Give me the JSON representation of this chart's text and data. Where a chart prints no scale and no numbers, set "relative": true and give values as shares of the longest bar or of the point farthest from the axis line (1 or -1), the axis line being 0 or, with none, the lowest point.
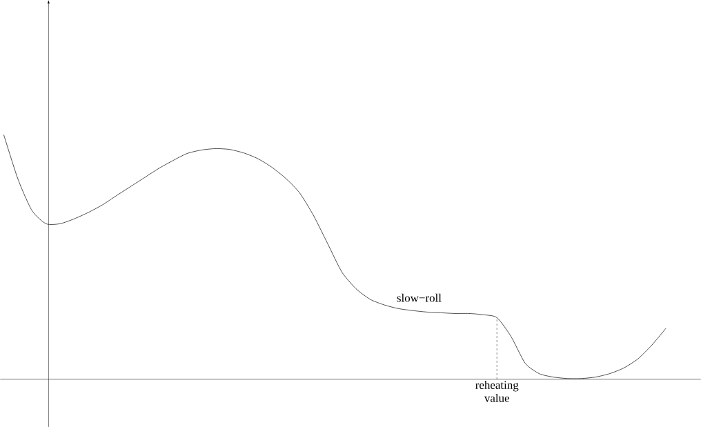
{
  "chart_data": {
    "type": "line",
    "relative": true,
    "color": "#000000",
    "categories": [
      null,
      null,
      null,
      null,
      null,
      null,
      null,
      null,
      null,
      null,
      null,
      null,
      null,
      null,
      null,
      null,
      null,
      null,
      null,
      null,
      null,
      null,
      null,
      null,
      null,
      null,
      null,
      null,
      null,
      null,
      null,
      null,
      null,
      null,
      null,
      null,
      null,
      null,
      null,
      null,
      null,
      null,
      null,
      null,
      null,
      null,
      null,
      null
    ],
    "values": [
      1,
      0.82,
      0.69,
      0.636,
      0.636,
      0.656,
      0.682,
      0.713,
      0.751,
      0.788,
      0.825,
      0.862,
      0.894,
      0.923,
      0.937,
      0.943,
      0.94,
      0.926,
      0.903,
      0.868,
      0.822,
      0.762,
      0.668,
      0.553,
      0.438,
      0.37,
      0.327,
      0.304,
      0.289,
      0.281,
      0.275,
      0.272,
      0.269,
      0.269,
      0.264,
      0.252,
      0.175,
      0.066,
      0.023,
      0.009,
      0.003,
      0.003,
      0.009,
      0.023,
      0.046,
      0.083,
      0.14,
      0.209
    ],
    "annotations": [
      "slow−roll",
      "reheating value"
    ]
  }
}
